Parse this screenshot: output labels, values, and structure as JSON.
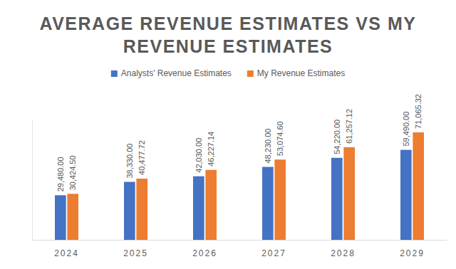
{
  "chart_data": {
    "type": "bar",
    "title": "AVERAGE REVENUE ESTIMATES VS MY REVENUE ESTIMATES",
    "categories": [
      "2024",
      "2025",
      "2026",
      "2027",
      "2028",
      "2029"
    ],
    "series": [
      {
        "name": "Analysts' Revenue Estimates",
        "color": "#4472c4",
        "values": [
          29480,
          38330,
          42030,
          48230,
          54220,
          59490
        ],
        "value_labels": [
          "29,480.00",
          "38,330.00",
          "42,030.00",
          "48,230.00",
          "54,220.00",
          "59,490.00"
        ]
      },
      {
        "name": "My Revenue Estimates",
        "color": "#ed7d31",
        "values": [
          30424.5,
          40477.72,
          46227.14,
          53074.6,
          61257.12,
          71065.32
        ],
        "value_labels": [
          "30,424.50",
          "40,477.72",
          "46,227.14",
          "53,074.60",
          "61,257.12",
          "71,065.32"
        ]
      }
    ],
    "ylim": [
      0,
      80000
    ],
    "data_labels": true,
    "tick_labels": "x",
    "legend": "top",
    "grid": false
  }
}
